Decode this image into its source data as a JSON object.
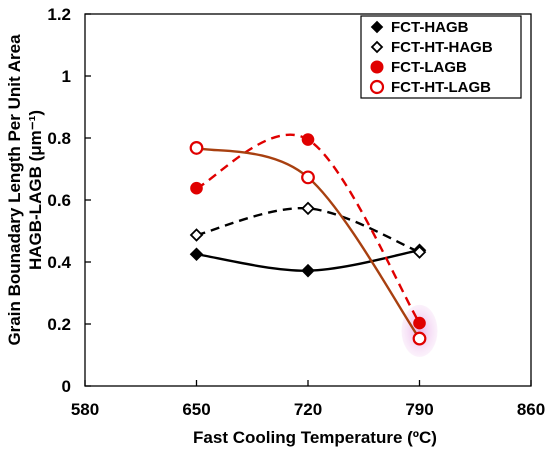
{
  "chart_data": {
    "type": "line",
    "xlabel": "Fast Cooling Temperature (ºC)",
    "ylabel": [
      "Grain Bounadary Length Per Unit Area",
      "HAGB-LAGB (μm⁻¹)"
    ],
    "xlim": [
      580,
      860
    ],
    "ylim": [
      0,
      1.2
    ],
    "xticks": [
      580,
      650,
      720,
      790,
      860
    ],
    "xtick_labels": [
      "580",
      "650",
      "720",
      "790",
      "860"
    ],
    "yticks": [
      0,
      0.2,
      0.4,
      0.6,
      0.8,
      1,
      1.2
    ],
    "ytick_labels": [
      "0",
      "0.2",
      "0.4",
      "0.6",
      "0.8",
      "1",
      "1.2"
    ],
    "grid": false,
    "legend_position": "top-right",
    "x": [
      650,
      720,
      790
    ],
    "series": [
      {
        "name": "FCT-HAGB",
        "values": [
          0.425,
          0.372,
          0.438
        ],
        "marker": "diamond",
        "filled": true,
        "color": "#000000",
        "line": "solid"
      },
      {
        "name": "FCT-HT-HAGB",
        "values": [
          0.487,
          0.573,
          0.432
        ],
        "marker": "diamond",
        "filled": false,
        "color": "#000000",
        "line": "dashed"
      },
      {
        "name": "FCT-LAGB",
        "values": [
          0.638,
          0.795,
          0.203
        ],
        "marker": "circle",
        "filled": true,
        "color": "#e00000",
        "line": "dashed"
      },
      {
        "name": "FCT-HT-LAGB",
        "values": [
          0.768,
          0.673,
          0.153
        ],
        "marker": "circle",
        "filled": false,
        "color": "#e00000",
        "line": "solid-brown"
      }
    ]
  }
}
